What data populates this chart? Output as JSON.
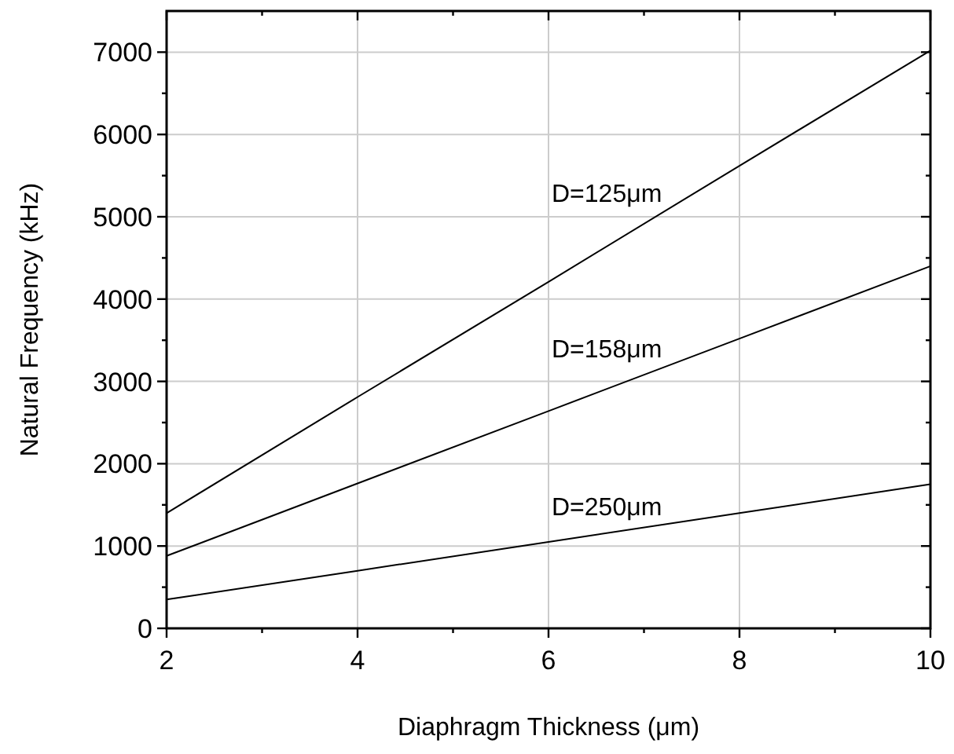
{
  "chart_data": {
    "type": "line",
    "xlabel": "Diaphragm Thickness (μm)",
    "ylabel": "Natural Frequency (kHz)",
    "x": [
      2,
      4,
      6,
      8,
      10
    ],
    "series": [
      {
        "name": "D=125μm",
        "color": "#000000",
        "values": [
          1400,
          2810,
          4210,
          5620,
          7020
        ]
      },
      {
        "name": "D=158μm",
        "color": "#000000",
        "values": [
          880,
          1760,
          2640,
          3520,
          4400
        ]
      },
      {
        "name": "D=250μm",
        "color": "#000000",
        "values": [
          350,
          700,
          1050,
          1400,
          1750
        ]
      }
    ],
    "xlim": [
      2,
      10
    ],
    "ylim": [
      0,
      7500
    ],
    "xticks": [
      2,
      {
        "value": 3,
        "label": null
      },
      4,
      {
        "value": 5,
        "label": null
      },
      6,
      {
        "value": 7,
        "label": null
      },
      8,
      {
        "value": 9,
        "label": null
      },
      10
    ],
    "yticks": [
      0,
      {
        "value": 500,
        "label": null
      },
      1000,
      {
        "value": 1500,
        "label": null
      },
      2000,
      {
        "value": 2500,
        "label": null
      },
      3000,
      {
        "value": 3500,
        "label": null
      },
      4000,
      {
        "value": 4500,
        "label": null
      },
      5000,
      {
        "value": 5500,
        "label": null
      },
      6000,
      {
        "value": 6500,
        "label": null
      },
      7000
    ],
    "grid": true,
    "marker": "none",
    "line_style": "solid"
  }
}
